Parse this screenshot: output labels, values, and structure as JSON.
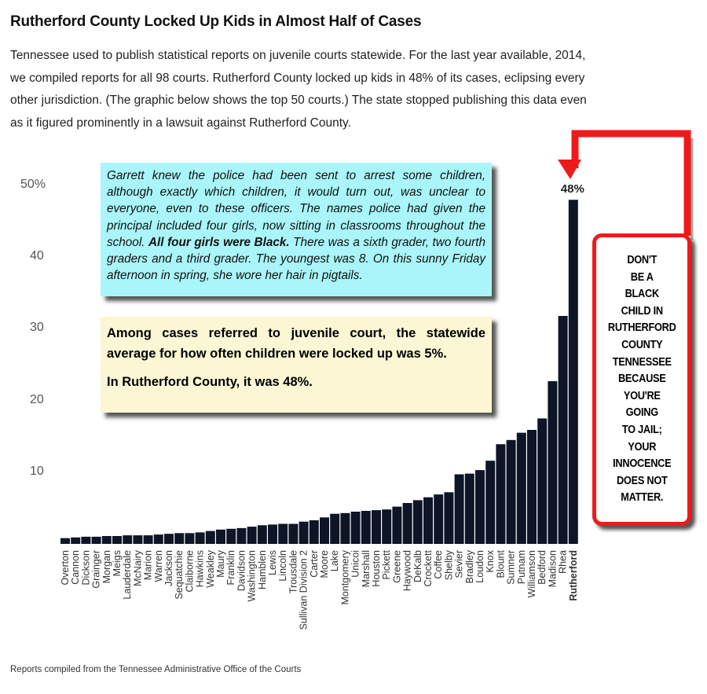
{
  "title": "Rutherford County Locked Up Kids in Almost Half of Cases",
  "intro": "Tennessee used to publish statistical reports on juvenile courts statewide. For the last year available, 2014, we compiled reports for all 98 courts. Rutherford County locked up kids in 48% of its cases, eclipsing every other jurisdiction. (The graphic below shows the top 50 courts.) The state stopped publishing this data even as it figured prominently in a lawsuit against Rutherford County.",
  "quote_box": {
    "text_before": "Garrett knew the police had been sent to arrest some children, although exactly which children, it would turn out, was unclear to everyone, even to these officers. The names police had given the principal included four girls, now sitting in classrooms throughout the school. ",
    "text_bold": "All four girls were Black.",
    "text_after": " There was a sixth grader, two fourth graders and a third grader. The youngest was 8. On this sunny Friday afternoon in spring, she wore her hair in pigtails."
  },
  "stat_box": {
    "line1": "Among cases referred to juvenile court, the statewide average for how often children were locked up was 5%.",
    "line2": "In Rutherford County, it was 48%."
  },
  "warning_box": {
    "text": "DON'T\nBE A\nBLACK\nCHILD IN\nRUTHERFORD\nCOUNTY\nTENNESSEE\nBECAUSE\nYOU'RE\nGOING\nTO JAIL;\nYOUR\nINNOCENCE\nDOES NOT\nMATTER."
  },
  "source": "Reports compiled from the Tennessee Administrative Office of the Courts",
  "colors": {
    "bar": "#0d1526",
    "arrow": "#ee1a1a",
    "quote_bg": "#a9f5f9",
    "stat_bg": "#fbf6d3"
  },
  "chart_data": {
    "type": "bar",
    "categories": [
      "Overton",
      "Cannon",
      "Dickson",
      "Grainger",
      "Morgan",
      "Meigs",
      "Lauderdale",
      "McNairy",
      "Marion",
      "Warren",
      "Jackson",
      "Sequatchie",
      "Claiborne",
      "Hawkins",
      "Weakley",
      "Maury",
      "Franklin",
      "Davidson",
      "Washington",
      "Hamblen",
      "Lewis",
      "Lincoln",
      "Trousdale",
      "Sullivan Division 2",
      "Carter",
      "Moore",
      "Lake",
      "Montgomery",
      "Unicoi",
      "Marshall",
      "Houston",
      "Pickett",
      "Greene",
      "Haywood",
      "DeKalb",
      "Crockett",
      "Coffee",
      "Shelby",
      "Sevier",
      "Bradley",
      "Loudon",
      "Knox",
      "Blount",
      "Sumner",
      "Putnam",
      "Williamson",
      "Bedford",
      "Madison",
      "Rhea",
      "Rutherford"
    ],
    "values": [
      0.8,
      0.9,
      1.0,
      1.0,
      1.1,
      1.1,
      1.2,
      1.2,
      1.2,
      1.3,
      1.4,
      1.5,
      1.5,
      1.6,
      1.8,
      2.0,
      2.1,
      2.2,
      2.4,
      2.6,
      2.7,
      2.8,
      2.8,
      3.1,
      3.3,
      3.7,
      4.2,
      4.3,
      4.5,
      4.6,
      4.7,
      4.8,
      5.2,
      5.7,
      6.1,
      6.5,
      6.9,
      7.2,
      9.7,
      9.8,
      10.3,
      11.6,
      13.9,
      14.5,
      15.5,
      15.9,
      17.5,
      22.7,
      31.8,
      48
    ],
    "highlight": "Rutherford",
    "annotation": "48%",
    "yticks": [
      {
        "value": 50,
        "label": "50%"
      },
      {
        "value": 40,
        "label": "40"
      },
      {
        "value": 30,
        "label": "30"
      },
      {
        "value": 20,
        "label": "20"
      },
      {
        "value": 10,
        "label": "10"
      }
    ],
    "ylim": [
      0,
      50
    ],
    "grid": false
  }
}
